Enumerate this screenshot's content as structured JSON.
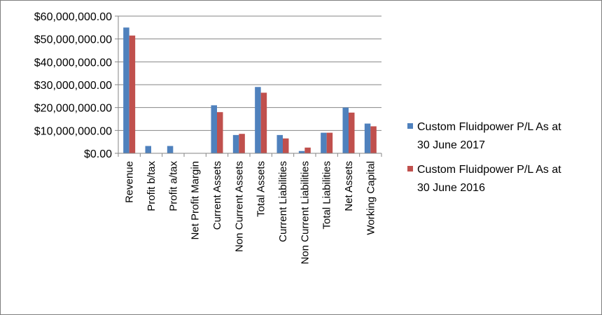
{
  "chart_data": {
    "type": "bar",
    "categories": [
      "Revenue",
      "Profit b/tax",
      "Profit a/tax",
      "Net Profit Margin",
      "Current Assets",
      "Non Current  Assets",
      "Total Assets",
      "Current Liabilities",
      "Non Current Liabilities",
      "Total Liabilities",
      "Net Assets",
      "Working Capital"
    ],
    "series": [
      {
        "name": "Custom Fluidpower P/L As at 30 June 2017",
        "name_lines": [
          "Custom Fluidpower P/L As at",
          "30 June 2017"
        ],
        "color": "#4f81bd",
        "values": [
          55000000,
          3200000,
          3200000,
          0,
          21000000,
          8000000,
          29000000,
          8000000,
          1000000,
          9000000,
          20000000,
          13000000
        ]
      },
      {
        "name": "Custom Fluidpower P/L As at 30 June 2016",
        "name_lines": [
          "Custom Fluidpower P/L As at",
          "30 June 2016"
        ],
        "color": "#c0504d",
        "values": [
          51500000,
          0,
          0,
          0,
          18000000,
          8500000,
          26500000,
          6500000,
          2500000,
          9000000,
          17800000,
          11800000
        ]
      }
    ],
    "yticks": [
      0,
      10000000,
      20000000,
      30000000,
      40000000,
      50000000,
      60000000
    ],
    "ytick_labels": [
      "$0.00",
      "$10,000,000.00",
      "$20,000,000.00",
      "$30,000,000.00",
      "$40,000,000.00",
      "$50,000,000.00",
      "$60,000,000.00"
    ],
    "ylim": [
      0,
      60000000
    ],
    "grid": true,
    "legend": "right"
  }
}
